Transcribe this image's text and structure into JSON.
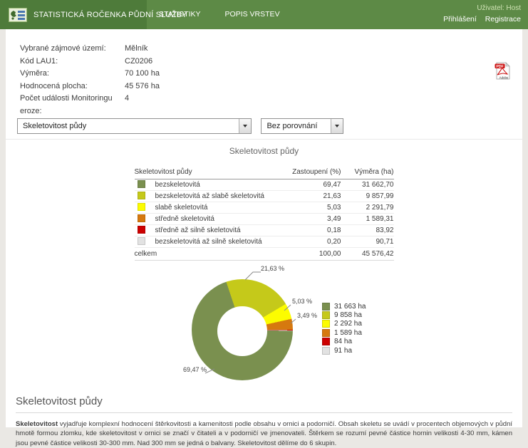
{
  "navbar": {
    "brand": "STATISTICKÁ ROČENKA PŮDNÍ SLUŽBY",
    "menu": [
      {
        "label": "STATISTIKY"
      },
      {
        "label": "POPIS VRSTEV"
      }
    ],
    "user_label": "Uživatel: Host",
    "auth_links": [
      {
        "label": "Přihlášení"
      },
      {
        "label": "Registrace"
      }
    ]
  },
  "info": {
    "rows": [
      {
        "label": "Vybrané zájmové území:",
        "value": "Mělník"
      },
      {
        "label": "Kód LAU1:",
        "value": "CZ0206"
      },
      {
        "label": "Výměra:",
        "value": "70 100 ha"
      },
      {
        "label": "Hodnocená plocha:",
        "value": "45 576 ha"
      },
      {
        "label": "Počet události Monitoringu eroze:",
        "value": "4"
      }
    ]
  },
  "pdf_icon": {
    "label": "PDF",
    "sub": "Adobe"
  },
  "controls": {
    "layer_select_value": "Skeletovitost půdy",
    "compare_select_value": "Bez porovnání"
  },
  "chart_data": {
    "type": "pie",
    "donut": true,
    "title": "Skeletovitost půdy",
    "start_angle_deg_from_top_cw": 91.4,
    "categories": [
      "bezskeletovitá",
      "bezskeletovitá až slabě skeletovitá",
      "slabě skeletovitá",
      "středně skeletovitá",
      "středně až silně skeletovitá",
      "bezskeletovitá až silně skeletovitá"
    ],
    "values": [
      69.47,
      21.63,
      5.03,
      3.49,
      0.18,
      0.2
    ],
    "areas_ha": [
      31662.7,
      9857.99,
      2291.79,
      1589.31,
      83.92,
      90.71
    ],
    "colors": [
      "#7a904f",
      "#c5c91a",
      "#fcfc00",
      "#d6790f",
      "#cc0000",
      "#e2e2e2"
    ],
    "legend": [
      "31 663 ha",
      "9 858 ha",
      "2 292 ha",
      "1 589 ha",
      "84 ha",
      "91 ha"
    ],
    "legend_position": "right",
    "slice_labels": [
      "69,47 %",
      "21,63 %",
      "5,03 %",
      "3,49 %"
    ]
  },
  "table": {
    "headers": [
      "Skeletovitost půdy",
      "Zastoupení (%)",
      "Výměra (ha)"
    ],
    "rows": [
      {
        "color": "#7a904f",
        "label": "bezskeletovitá",
        "pct": "69,47",
        "area": "31 662,70"
      },
      {
        "color": "#c5c91a",
        "label": "bezskeletovitá až slabě skeletovitá",
        "pct": "21,63",
        "area": "9 857,99"
      },
      {
        "color": "#fcfc00",
        "label": "slabě skeletovitá",
        "pct": "5,03",
        "area": "2 291,79"
      },
      {
        "color": "#d6790f",
        "label": "středně skeletovitá",
        "pct": "3,49",
        "area": "1 589,31"
      },
      {
        "color": "#cc0000",
        "label": "středně až silně skeletovitá",
        "pct": "0,18",
        "area": "83,92"
      },
      {
        "color": "#e2e2e2",
        "label": "bezskeletovitá až silně skeletovitá",
        "pct": "0,20",
        "area": "90,71"
      }
    ],
    "footer": {
      "label": "celkem",
      "pct": "100,00",
      "area": "45 576,42"
    }
  },
  "description": {
    "heading": "Skeletovitost půdy",
    "lead": "Skeletovitost",
    "text": " vyjadřuje komplexní hodnocení štěrkovitosti a kamenitosti podle obsahu v ornici a podorničí. Obsah skeletu se uvádí v procentech objemových v půdní hmotě formou zlomku, kde skeletovitost v ornici se značí v čitateli a v podorničí ve jmenovateli. Štěrkem se rozumí pevné částice hornin velikosti 4-30 mm, kámen jsou pevné částice velikosti 30-300 mm. Nad 300 mm se jedná o balvany. Skeletovitost dělíme do 6 skupin."
  },
  "theme": {
    "navbar_green": "#5d8a46",
    "brand_green": "#4e7b3a",
    "page_background": "#eae8e4",
    "content_background": "#ffffff"
  }
}
